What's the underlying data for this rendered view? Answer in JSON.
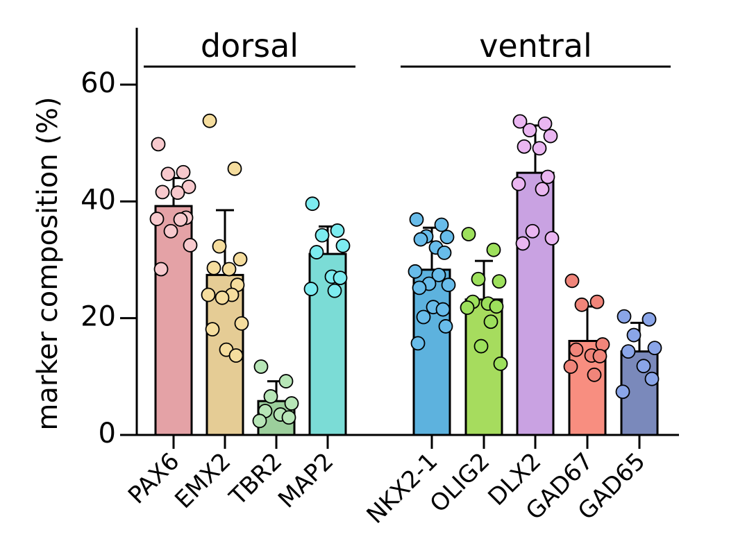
{
  "chart_data": {
    "type": "bar",
    "title": "",
    "xlabel": "",
    "ylabel": "marker composition (%)",
    "ylim": [
      0,
      70
    ],
    "yticks": [
      0,
      20,
      40,
      60
    ],
    "groups": [
      {
        "label": "dorsal",
        "categories": [
          "PAX6",
          "EMX2",
          "TBR2",
          "MAP2"
        ]
      },
      {
        "label": "ventral",
        "categories": [
          "NKX2-1",
          "OLIG2",
          "DLX2",
          "GAD67",
          "GAD65"
        ]
      }
    ],
    "categories": [
      "PAX6",
      "EMX2",
      "TBR2",
      "MAP2",
      "NKX2-1",
      "OLIG2",
      "DLX2",
      "GAD67",
      "GAD65"
    ],
    "values": [
      39.2,
      27.4,
      5.8,
      31.0,
      28.3,
      23.2,
      44.9,
      16.1,
      14.3
    ],
    "error_upper": [
      44.0,
      38.5,
      9.2,
      35.7,
      35.5,
      29.8,
      53.0,
      22.0,
      19.2
    ],
    "colors": [
      "#e4a2a6",
      "#e5cc95",
      "#9ccf9c",
      "#7bdcd6",
      "#5db2de",
      "#a6dc5e",
      "#c9a2e2",
      "#f88e80",
      "#7a89bb"
    ],
    "point_colors": [
      "#f7c9cd",
      "#f5dd9e",
      "#b7e6b7",
      "#7cecf0",
      "#68bcea",
      "#9de05c",
      "#eab6f1",
      "#f0857a",
      "#8aa5e8"
    ],
    "points": [
      [
        49.8,
        45.0,
        44.7,
        42.5,
        41.6,
        41.5,
        37.2,
        37.0,
        36.9,
        34.9,
        32.5,
        28.4
      ],
      [
        53.8,
        45.6,
        32.3,
        30.1,
        28.6,
        28.4,
        25.7,
        24.0,
        24.0,
        23.5,
        19.1,
        18.1,
        14.6,
        13.6
      ],
      [
        11.7,
        9.2,
        6.6,
        5.4,
        4.1,
        3.5,
        3.0,
        2.4
      ],
      [
        39.6,
        35.0,
        34.2,
        32.4,
        31.3,
        27.1,
        26.9,
        25.0,
        24.7
      ],
      [
        36.9,
        36.0,
        34.0,
        33.9,
        33.5,
        32.1,
        31.2,
        28.0,
        27.4,
        25.9,
        25.7,
        25.2,
        21.9,
        21.5,
        20.2,
        18.6,
        15.7
      ],
      [
        34.4,
        31.7,
        26.7,
        26.3,
        22.8,
        22.5,
        22.0,
        21.8,
        19.4,
        15.2,
        12.2
      ],
      [
        53.7,
        53.3,
        52.2,
        51.2,
        49.4,
        49.1,
        44.2,
        43.0,
        42.1,
        34.9,
        33.7,
        32.8
      ],
      [
        26.4,
        22.8,
        22.3,
        15.5,
        14.6,
        13.6,
        13.5,
        11.7,
        10.3
      ],
      [
        20.3,
        19.8,
        17.1,
        14.9,
        14.3,
        11.8,
        9.6,
        7.4
      ]
    ]
  }
}
